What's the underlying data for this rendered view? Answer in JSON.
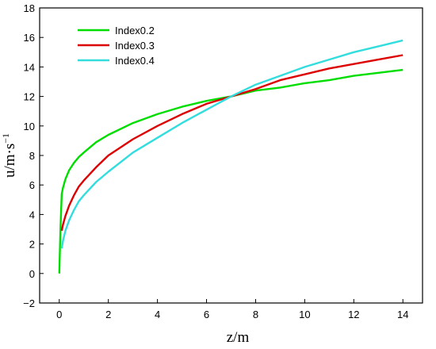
{
  "chart_data": {
    "type": "line",
    "xlabel": "z/m",
    "ylabel_base": "u/m·s",
    "ylabel_sup": "−1",
    "xlim": [
      -0.8,
      14.8
    ],
    "ylim": [
      -2,
      18
    ],
    "xticks": [
      0,
      2,
      4,
      6,
      8,
      10,
      12,
      14
    ],
    "yticks": [
      -2,
      0,
      2,
      4,
      6,
      8,
      10,
      12,
      14,
      16,
      18
    ],
    "grid": false,
    "legend_position": "top-left",
    "series": [
      {
        "name": "Index0.2",
        "color": "#00dd00",
        "x": [
          0.0,
          0.05,
          0.1,
          0.15,
          0.25,
          0.4,
          0.6,
          0.8,
          1.0,
          1.5,
          2.0,
          3.0,
          4.0,
          5.0,
          6.0,
          7.0,
          8.0,
          9.0,
          10.0,
          11.0,
          12.0,
          13.0,
          14.0
        ],
        "values": [
          0.0,
          3.1,
          5.4,
          5.8,
          6.4,
          7.0,
          7.5,
          7.9,
          8.2,
          8.9,
          9.4,
          10.2,
          10.8,
          11.3,
          11.7,
          12.0,
          12.4,
          12.6,
          12.9,
          13.1,
          13.4,
          13.6,
          13.8
        ]
      },
      {
        "name": "Index0.3",
        "color": "#dd0000",
        "x": [
          0.1,
          0.15,
          0.25,
          0.4,
          0.6,
          0.8,
          1.0,
          1.5,
          2.0,
          3.0,
          4.0,
          5.0,
          6.0,
          7.0,
          8.0,
          9.0,
          10.0,
          11.0,
          12.0,
          13.0,
          14.0
        ],
        "values": [
          2.9,
          3.3,
          3.9,
          4.6,
          5.3,
          5.9,
          6.3,
          7.2,
          8.0,
          9.1,
          10.0,
          10.8,
          11.5,
          12.0,
          12.5,
          13.1,
          13.5,
          13.9,
          14.2,
          14.5,
          14.8
        ]
      },
      {
        "name": "Index0.4",
        "color": "#33dddd",
        "x": [
          0.1,
          0.15,
          0.25,
          0.4,
          0.6,
          0.8,
          1.0,
          1.5,
          2.0,
          3.0,
          4.0,
          5.0,
          6.0,
          7.0,
          8.0,
          9.0,
          10.0,
          11.0,
          12.0,
          13.0,
          14.0
        ],
        "values": [
          1.7,
          2.2,
          2.9,
          3.6,
          4.3,
          4.9,
          5.3,
          6.2,
          6.9,
          8.2,
          9.2,
          10.2,
          11.1,
          12.0,
          12.8,
          13.4,
          14.0,
          14.5,
          15.0,
          15.4,
          15.8
        ]
      }
    ]
  }
}
